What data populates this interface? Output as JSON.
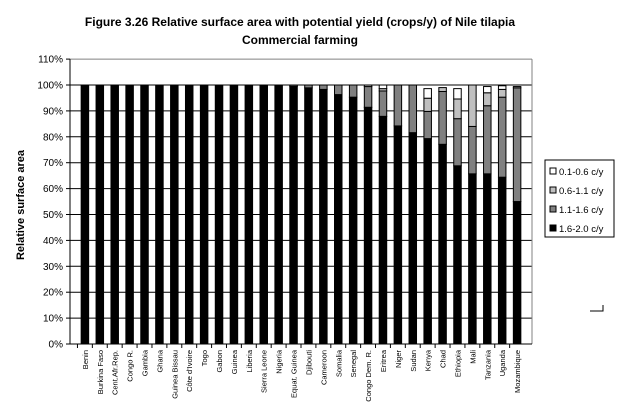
{
  "chart_data": {
    "type": "bar",
    "stacked": true,
    "title": "Figure 3.26 Relative surface area with potential yield (crops/y) of Nile tilapia",
    "subtitle": "Commercial farming",
    "xlabel": "",
    "ylabel": "Relative surface area",
    "ylim": [
      0,
      110
    ],
    "yticks": [
      "0%",
      "10%",
      "20%",
      "30%",
      "40%",
      "50%",
      "60%",
      "70%",
      "80%",
      "90%",
      "100%",
      "110%"
    ],
    "grid": true,
    "legend_position": "right",
    "categories": [
      "Benin",
      "Burkina Faso",
      "Cent.Afr.Rep.",
      "Congo R.",
      "Gambia",
      "Ghana",
      "Guinea Bissau",
      "Côte d'Ivoire",
      "Togo",
      "Gabon",
      "Guinea",
      "Liberia",
      "Sierra Leone",
      "Nigeria",
      "Equat. Guinea",
      "Djibouti",
      "Cameroon",
      "Somalia",
      "Senegal",
      "Congo Dem. R.",
      "Eritrea",
      "Niger",
      "Sudan",
      "Kenya",
      "Chad",
      "Ethiopia",
      "Mali",
      "Tanzania",
      "Uganda",
      "Mozambique"
    ],
    "series": [
      {
        "name": "1.6-2.0 c/y",
        "color": "#000000",
        "values": [
          100,
          100,
          100,
          100,
          100,
          100,
          100,
          100,
          100,
          100,
          100,
          100,
          100,
          100,
          99.5,
          98.9,
          98.3,
          96.3,
          95.3,
          91.4,
          87.9,
          84.2,
          81.6,
          79.3,
          77.1,
          68.8,
          65.7,
          65.7,
          64.4,
          55.0
        ]
      },
      {
        "name": "1.1-1.6 c/y",
        "color": "#808080",
        "values": [
          0,
          0,
          0,
          0,
          0,
          0,
          0,
          0,
          0,
          0,
          0,
          0,
          0,
          0,
          0.5,
          1.1,
          1.7,
          3.7,
          4.7,
          8.0,
          9.8,
          15.8,
          18.4,
          10.5,
          20.4,
          18.2,
          18.3,
          26.3,
          30.9,
          43.9
        ]
      },
      {
        "name": "0.6-1.1 c/y",
        "color": "#c0c0c0",
        "values": [
          0,
          0,
          0,
          0,
          0,
          0,
          0,
          0,
          0,
          0,
          0,
          0,
          0,
          0,
          0,
          0,
          0,
          0,
          0,
          0.6,
          0.9,
          0,
          0,
          5.1,
          1.5,
          7.6,
          16.0,
          5.0,
          3.0,
          0.5
        ]
      },
      {
        "name": "0.1-0.6 c/y",
        "color": "#ffffff",
        "values": [
          0,
          0,
          0,
          0,
          0,
          0,
          0,
          0,
          0,
          0,
          0,
          0,
          0,
          0,
          0,
          0,
          0,
          0,
          0,
          0,
          1.4,
          0,
          0,
          3.7,
          0,
          4.0,
          0,
          2.4,
          1.4,
          0
        ]
      }
    ]
  }
}
